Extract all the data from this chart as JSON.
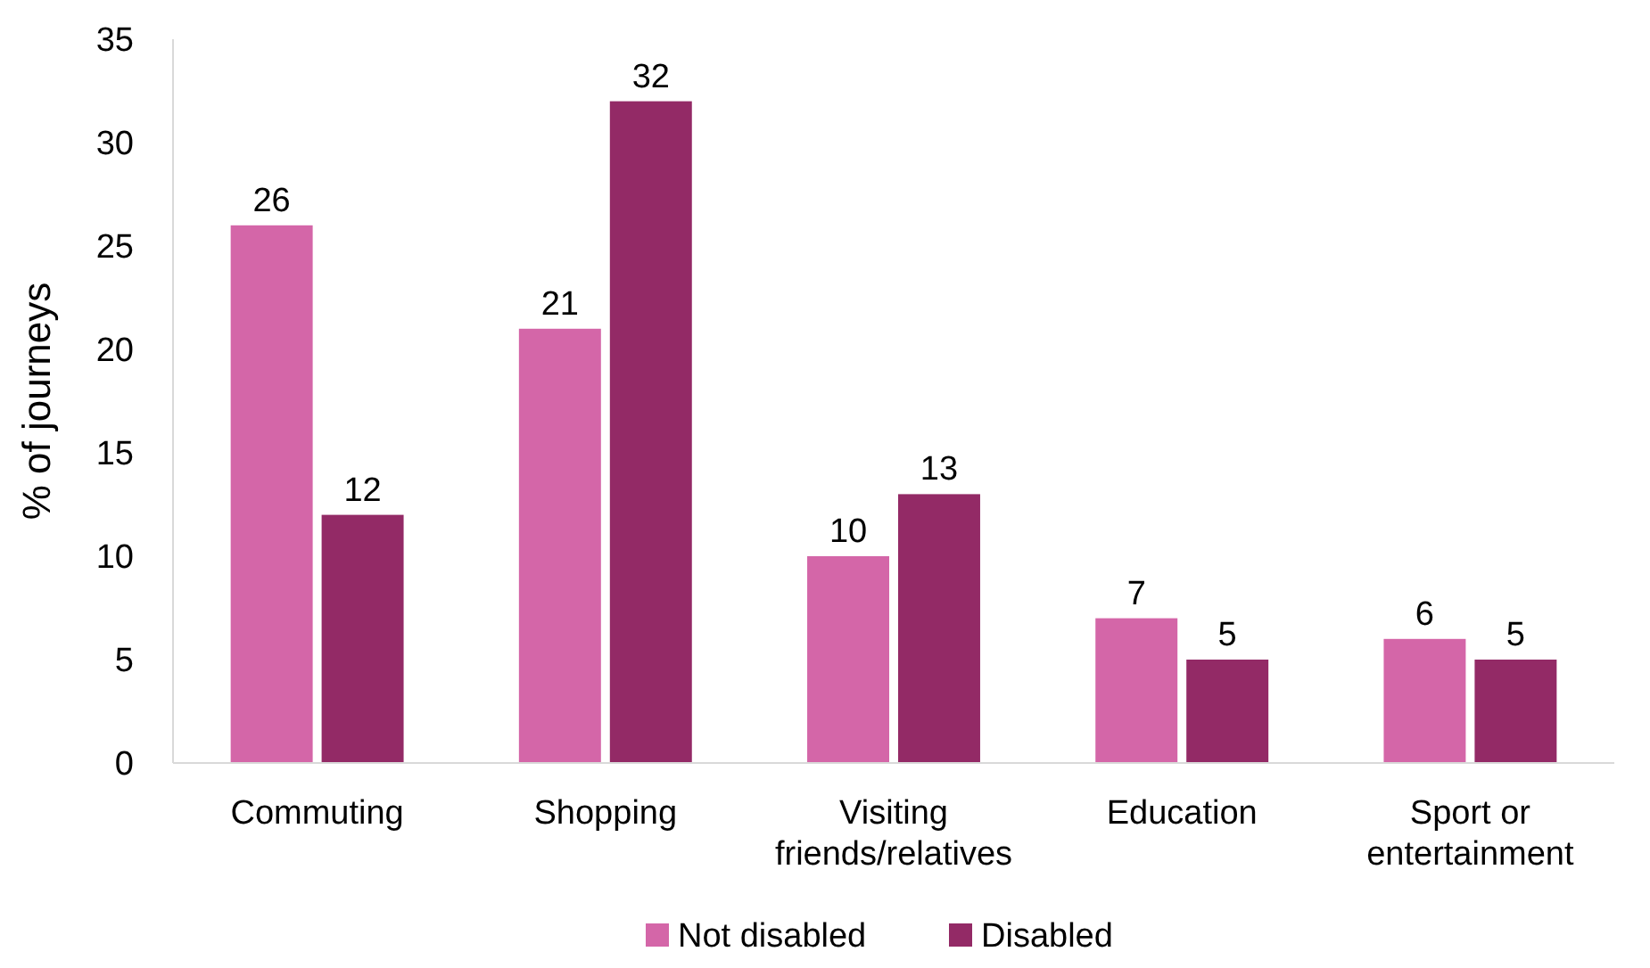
{
  "chart_data": {
    "type": "bar",
    "ylabel": "% of journeys",
    "categories": [
      "Commuting",
      "Shopping",
      "Visiting friends/relatives",
      "Education",
      "Sport or entertainment"
    ],
    "series": [
      {
        "name": "Not disabled",
        "color": "#d466a8",
        "values": [
          26,
          21,
          10,
          7,
          6
        ]
      },
      {
        "name": "Disabled",
        "color": "#932a66",
        "values": [
          12,
          32,
          13,
          5,
          5
        ]
      }
    ],
    "ylim": [
      0,
      35
    ],
    "yticks": [
      0,
      5,
      10,
      15,
      20,
      25,
      30,
      35
    ],
    "data_labels": true,
    "legend": "bottom",
    "grid": false
  }
}
